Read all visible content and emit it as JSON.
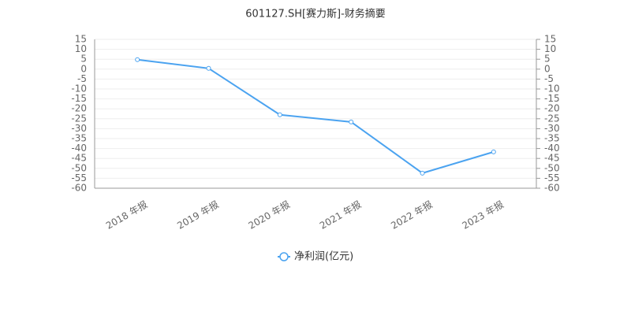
{
  "chart_data": {
    "type": "line",
    "title": "601127.SH[赛力斯]-财务摘要",
    "categories": [
      "2018 年报",
      "2019 年报",
      "2020 年报",
      "2021 年报",
      "2022 年报",
      "2023 年报"
    ],
    "series": [
      {
        "name": "净利润(亿元)",
        "color": "#4ba3f0",
        "values": [
          4.8,
          0.4,
          -23,
          -26.6,
          -52.4,
          -41.7
        ]
      }
    ],
    "ylim": [
      -60,
      15
    ],
    "yticks": [
      15,
      10,
      5,
      0,
      -5,
      -10,
      -15,
      -20,
      -25,
      -30,
      -35,
      -40,
      -45,
      -50,
      -55,
      -60
    ],
    "y2lim": [
      -60,
      15
    ],
    "y2ticks": [
      15,
      10,
      5,
      0,
      -5,
      -10,
      -15,
      -20,
      -25,
      -30,
      -35,
      -40,
      -45,
      -50,
      -55,
      -60
    ],
    "grid": true,
    "legend": "bottom"
  }
}
